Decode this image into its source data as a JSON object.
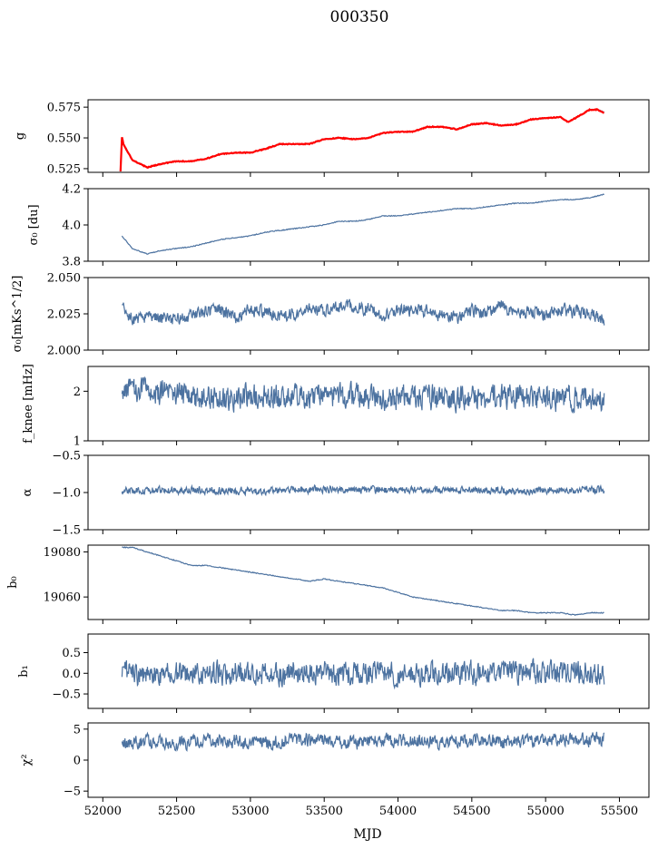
{
  "title": "000350",
  "xlabel": "MJD",
  "x_ticks": [
    "52000",
    "52500",
    "53000",
    "53500",
    "54000",
    "54500",
    "55000",
    "55500"
  ],
  "colors": {
    "series": "#4c72a0",
    "model": "#ff0000",
    "axis": "#000000"
  },
  "chart_data": [
    {
      "type": "line",
      "panel": "g",
      "ylabel": "g",
      "xlim": [
        51900,
        55700
      ],
      "ylim": [
        0.522,
        0.581
      ],
      "y_ticks": [
        "0.525",
        "0.550",
        "0.575"
      ],
      "series": [
        {
          "color": "#4c72a0",
          "x": [
            52130,
            52200,
            52300,
            52400,
            52500,
            52600,
            52700,
            52800,
            52900,
            53000,
            53100,
            53200,
            53300,
            53400,
            53500,
            53600,
            53700,
            53800,
            53900,
            54000,
            54100,
            54200,
            54300,
            54400,
            54500,
            54600,
            54700,
            54800,
            54900,
            55000,
            55100,
            55150,
            55200,
            55300,
            55350,
            55400
          ],
          "y": [
            0.548,
            0.532,
            0.526,
            0.529,
            0.531,
            0.531,
            0.533,
            0.537,
            0.538,
            0.538,
            0.541,
            0.545,
            0.545,
            0.545,
            0.549,
            0.55,
            0.549,
            0.55,
            0.554,
            0.555,
            0.555,
            0.559,
            0.559,
            0.557,
            0.561,
            0.562,
            0.56,
            0.561,
            0.565,
            0.566,
            0.567,
            0.563,
            0.566,
            0.573,
            0.573,
            0.571
          ]
        },
        {
          "color": "#ff0000",
          "x": [
            52120,
            52130,
            52140,
            52200,
            52300,
            52400,
            52500,
            52600,
            52700,
            52800,
            52900,
            53000,
            53100,
            53200,
            53300,
            53400,
            53500,
            53600,
            53700,
            53800,
            53900,
            54000,
            54100,
            54200,
            54300,
            54400,
            54500,
            54600,
            54700,
            54800,
            54900,
            55000,
            55100,
            55150,
            55200,
            55300,
            55350,
            55400
          ],
          "y": [
            0.523,
            0.551,
            0.545,
            0.532,
            0.526,
            0.529,
            0.531,
            0.531,
            0.533,
            0.537,
            0.538,
            0.538,
            0.541,
            0.545,
            0.545,
            0.545,
            0.549,
            0.55,
            0.549,
            0.55,
            0.554,
            0.555,
            0.555,
            0.559,
            0.559,
            0.557,
            0.561,
            0.562,
            0.56,
            0.561,
            0.565,
            0.566,
            0.567,
            0.563,
            0.566,
            0.573,
            0.573,
            0.57
          ]
        }
      ]
    },
    {
      "type": "line",
      "panel": "sigma0",
      "ylabel": "σ₀ [du]",
      "xlim": [
        51900,
        55700
      ],
      "ylim": [
        3.8,
        4.2
      ],
      "y_ticks": [
        "3.8",
        "4.0",
        "4.2"
      ],
      "series": [
        {
          "color": "#4c72a0",
          "x": [
            52130,
            52200,
            52300,
            52400,
            52500,
            52600,
            52700,
            52800,
            52900,
            53000,
            53100,
            53200,
            53300,
            53400,
            53500,
            53600,
            53700,
            53800,
            53900,
            54000,
            54100,
            54200,
            54300,
            54400,
            54500,
            54600,
            54700,
            54800,
            54900,
            55000,
            55100,
            55200,
            55300,
            55400
          ],
          "y": [
            3.94,
            3.87,
            3.84,
            3.86,
            3.87,
            3.88,
            3.9,
            3.92,
            3.93,
            3.94,
            3.96,
            3.97,
            3.98,
            3.99,
            4.0,
            4.02,
            4.02,
            4.03,
            4.05,
            4.05,
            4.06,
            4.07,
            4.08,
            4.09,
            4.09,
            4.1,
            4.11,
            4.12,
            4.12,
            4.13,
            4.14,
            4.14,
            4.15,
            4.17
          ]
        }
      ]
    },
    {
      "type": "line",
      "panel": "sigma_rate",
      "ylabel": "σ₀[mKs^1/2]",
      "xlim": [
        51900,
        55700
      ],
      "ylim": [
        2.0,
        2.05
      ],
      "y_ticks": [
        "2.000",
        "2.025",
        "2.050"
      ],
      "series": [
        {
          "color": "#4c72a0",
          "noise_amp": 0.004,
          "x": [
            52130,
            52200,
            52300,
            52400,
            52500,
            52600,
            52700,
            52800,
            52900,
            53000,
            53100,
            53200,
            53300,
            53400,
            53500,
            53600,
            53700,
            53800,
            53900,
            54000,
            54100,
            54200,
            54300,
            54400,
            54500,
            54600,
            54700,
            54800,
            54900,
            55000,
            55100,
            55200,
            55300,
            55400
          ],
          "y": [
            2.029,
            2.02,
            2.024,
            2.022,
            2.021,
            2.024,
            2.027,
            2.028,
            2.023,
            2.028,
            2.026,
            2.022,
            2.025,
            2.029,
            2.026,
            2.031,
            2.03,
            2.028,
            2.024,
            2.027,
            2.028,
            2.027,
            2.024,
            2.022,
            2.027,
            2.026,
            2.03,
            2.025,
            2.027,
            2.024,
            2.028,
            2.026,
            2.026,
            2.02
          ]
        }
      ]
    },
    {
      "type": "line",
      "panel": "fknee",
      "ylabel": "f_knee [mHz]",
      "xlim": [
        51900,
        55700
      ],
      "ylim": [
        1.0,
        2.5
      ],
      "y_ticks": [
        "1",
        "2"
      ],
      "series": [
        {
          "color": "#4c72a0",
          "noise_amp": 0.23,
          "x": [
            52130,
            52300,
            52500,
            52700,
            52900,
            53100,
            53300,
            53500,
            53700,
            53900,
            54100,
            54300,
            54500,
            54700,
            54900,
            55100,
            55300,
            55400
          ],
          "y": [
            2.05,
            2.0,
            1.95,
            1.85,
            1.85,
            1.9,
            1.85,
            1.9,
            1.9,
            1.85,
            1.9,
            1.85,
            1.85,
            1.9,
            1.85,
            1.85,
            1.85,
            1.85
          ]
        }
      ]
    },
    {
      "type": "line",
      "panel": "alpha",
      "ylabel": "α",
      "xlim": [
        51900,
        55700
      ],
      "ylim": [
        -1.5,
        -0.5
      ],
      "y_ticks": [
        "−1.5",
        "−1.0",
        "−0.5"
      ],
      "series": [
        {
          "color": "#4c72a0",
          "noise_amp": 0.045,
          "x": [
            52130,
            52400,
            52700,
            53000,
            53300,
            53600,
            53900,
            54200,
            54500,
            54800,
            55100,
            55400
          ],
          "y": [
            -0.98,
            -0.97,
            -0.97,
            -0.98,
            -0.96,
            -0.96,
            -0.97,
            -0.97,
            -0.97,
            -0.98,
            -0.96,
            -0.97
          ]
        }
      ]
    },
    {
      "type": "line",
      "panel": "b0",
      "ylabel": "b₀",
      "xlim": [
        51900,
        55700
      ],
      "ylim": [
        19050,
        19083
      ],
      "y_ticks": [
        "19060",
        "19080"
      ],
      "series": [
        {
          "color": "#4c72a0",
          "x": [
            52130,
            52200,
            52300,
            52400,
            52500,
            52600,
            52700,
            52800,
            52900,
            53000,
            53100,
            53200,
            53300,
            53400,
            53500,
            53600,
            53700,
            53800,
            53900,
            54000,
            54100,
            54200,
            54300,
            54400,
            54500,
            54600,
            54700,
            54800,
            54900,
            55000,
            55100,
            55200,
            55300,
            55400
          ],
          "y": [
            19082,
            19082,
            19080,
            19078,
            19076,
            19074,
            19074,
            19073,
            19072,
            19071,
            19070,
            19069,
            19068,
            19067,
            19068,
            19067,
            19066,
            19065,
            19064,
            19062,
            19060,
            19059,
            19058,
            19057,
            19056,
            19055,
            19054,
            19054,
            19053,
            19053,
            19053,
            19052,
            19053,
            19053
          ]
        }
      ]
    },
    {
      "type": "line",
      "panel": "b1",
      "ylabel": "b₁",
      "xlim": [
        51900,
        55700
      ],
      "ylim": [
        -0.85,
        0.95
      ],
      "y_ticks": [
        "−0.5",
        "0.0",
        "0.5"
      ],
      "series": [
        {
          "color": "#4c72a0",
          "noise_amp": 0.26,
          "x": [
            52130,
            52400,
            52700,
            53000,
            53300,
            53600,
            53900,
            54200,
            54500,
            54800,
            55100,
            55400
          ],
          "y": [
            0.0,
            0.0,
            0.02,
            0.0,
            0.0,
            0.0,
            0.02,
            0.0,
            0.0,
            0.0,
            0.02,
            0.0
          ]
        }
      ]
    },
    {
      "type": "line",
      "panel": "chi2",
      "ylabel": "χ²",
      "xlim": [
        51900,
        55700
      ],
      "ylim": [
        -6,
        6
      ],
      "y_ticks": [
        "−5",
        "0",
        "5"
      ],
      "series": [
        {
          "color": "#4c72a0",
          "noise_amp": 1.0,
          "x": [
            52130,
            52300,
            52500,
            52700,
            52900,
            53100,
            53300,
            53500,
            53700,
            53900,
            54100,
            54300,
            54500,
            54700,
            54900,
            55100,
            55300,
            55400
          ],
          "y": [
            2.5,
            3.0,
            2.8,
            3.2,
            3.0,
            2.8,
            3.3,
            3.0,
            2.8,
            3.2,
            3.0,
            2.8,
            3.3,
            3.0,
            2.9,
            3.4,
            3.2,
            3.5
          ]
        }
      ]
    }
  ]
}
